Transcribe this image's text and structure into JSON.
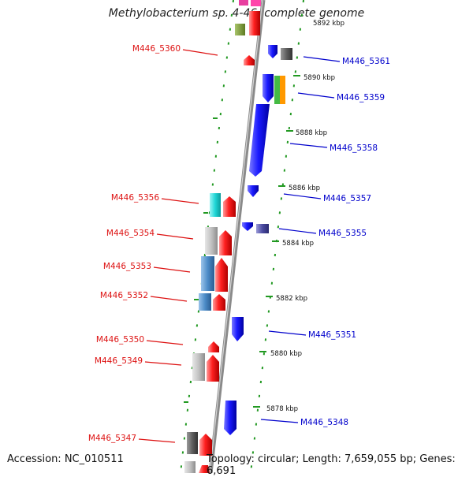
{
  "title": "Methylobacterium sp. 4-46, complete genome",
  "footer": {
    "accession": "Accession: NC_010511",
    "summary": "Topology: circular; Length: 7,659,055 bp; Genes: 6,691"
  },
  "colors": {
    "left_label": "#dd1111",
    "right_label": "#0000cc",
    "ruler_tick": "#229922",
    "backbone": "#888888"
  },
  "scale_labels": [
    "5892 kbp",
    "5890 kbp",
    "5888 kbp",
    "5886 kbp",
    "5884 kbp",
    "5882 kbp",
    "5880 kbp",
    "5878 kbp"
  ],
  "left_genes": [
    {
      "label": "M446_5360"
    },
    {
      "label": "M446_5356"
    },
    {
      "label": "M446_5354"
    },
    {
      "label": "M446_5353"
    },
    {
      "label": "M446_5352"
    },
    {
      "label": "M446_5350"
    },
    {
      "label": "M446_5349"
    },
    {
      "label": "M446_5347"
    }
  ],
  "right_genes": [
    {
      "label": "M446_5361"
    },
    {
      "label": "M446_5359"
    },
    {
      "label": "M446_5358"
    },
    {
      "label": "M446_5357"
    },
    {
      "label": "M446_5355"
    },
    {
      "label": "M446_5351"
    },
    {
      "label": "M446_5348"
    }
  ]
}
